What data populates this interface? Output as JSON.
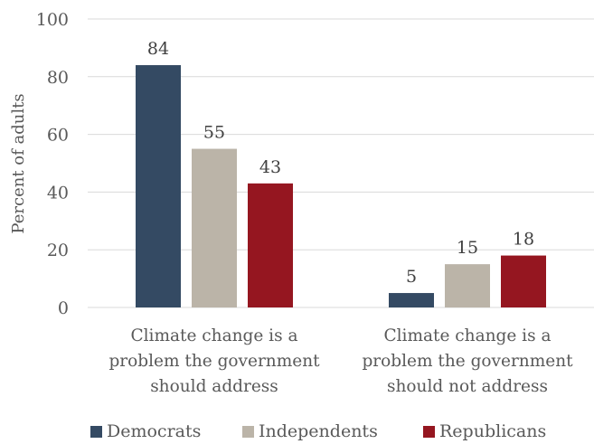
{
  "chart_data": {
    "type": "bar",
    "ylabel": "Percent of adults",
    "ylim": [
      0,
      100
    ],
    "yticks": [
      0,
      20,
      40,
      60,
      80,
      100
    ],
    "grid": true,
    "legend_position": "bottom",
    "categories": [
      [
        "Climate change is a",
        "problem the government",
        "should address"
      ],
      [
        "Climate change is a",
        "problem the government",
        "should not address"
      ]
    ],
    "series": [
      {
        "name": "Democrats",
        "color": "#344a63",
        "values": [
          84,
          5
        ]
      },
      {
        "name": "Independents",
        "color": "#bbb4a8",
        "values": [
          55,
          15
        ]
      },
      {
        "name": "Republicans",
        "color": "#951620",
        "values": [
          43,
          18
        ]
      }
    ]
  }
}
